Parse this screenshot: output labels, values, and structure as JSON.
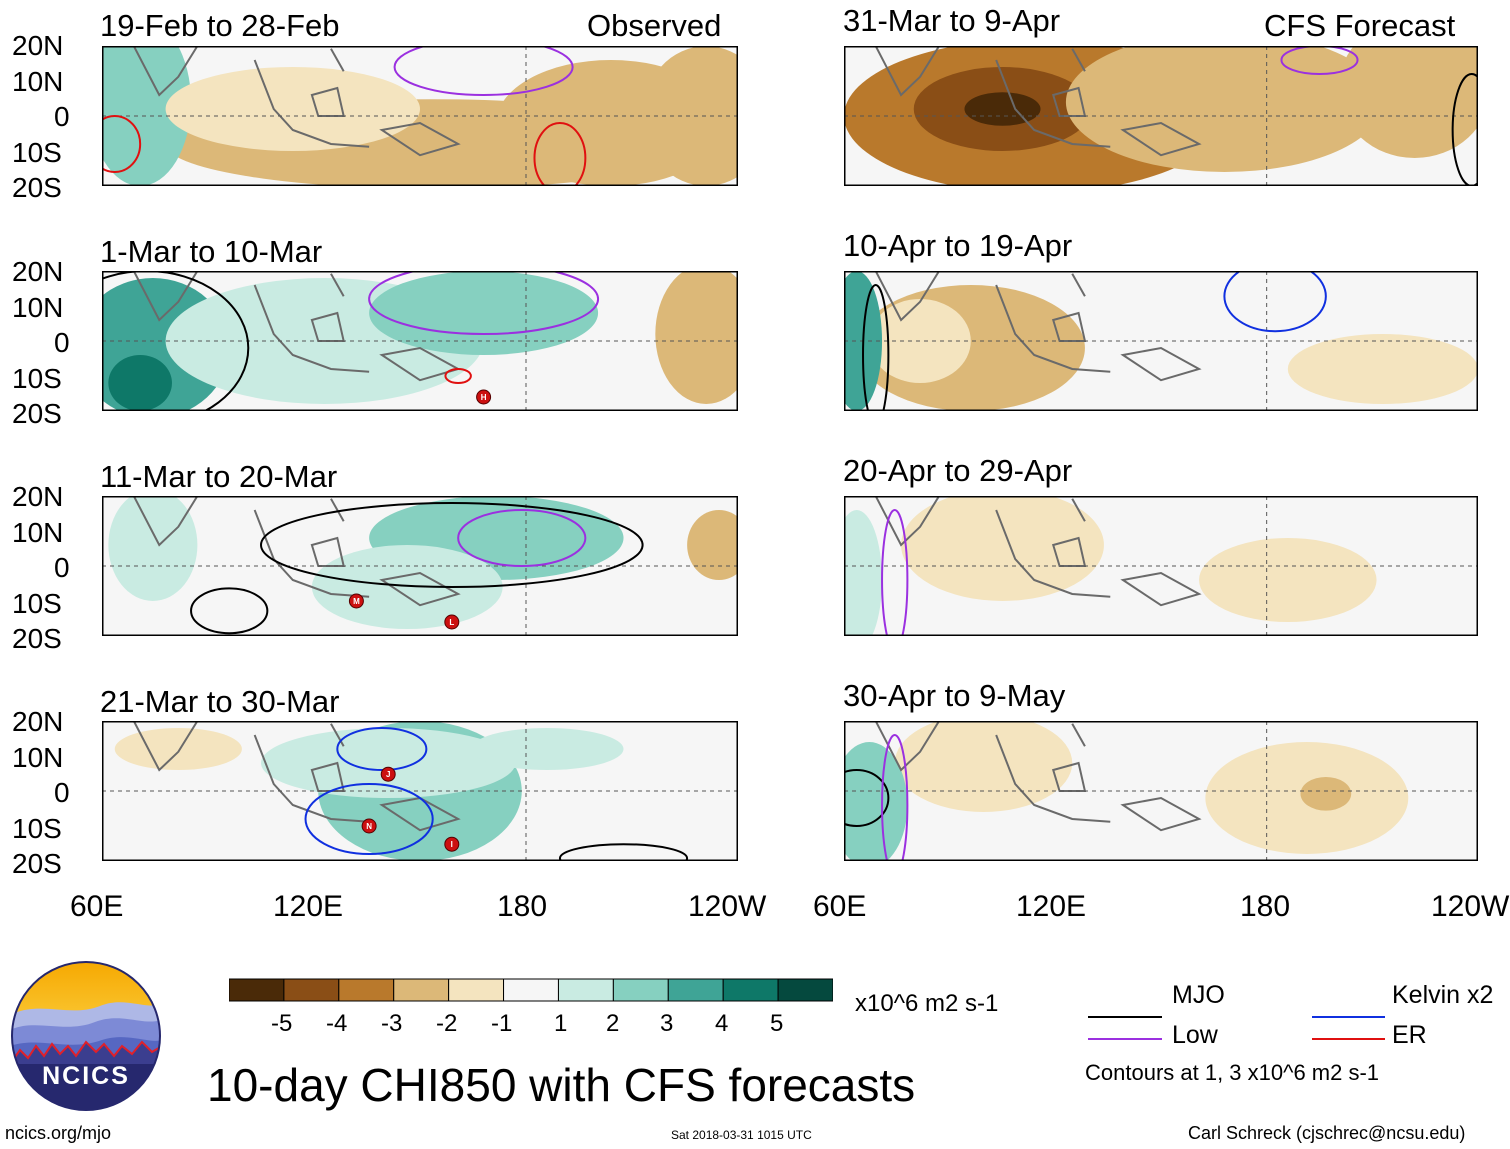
{
  "chart_data": {
    "type": "heatmap",
    "title": "10-day CHI850 with CFS forecasts",
    "variable": "CHI850",
    "units": "x10^6 m2 s-1",
    "latitude_labels": [
      "20N",
      "10N",
      "0",
      "10S",
      "20S"
    ],
    "longitude_labels": [
      "60E",
      "120E",
      "180",
      "120W"
    ],
    "observed_label": "Observed",
    "forecast_label": "CFS Forecast",
    "colorbar": {
      "ticks": [
        "-5",
        "-4",
        "-3",
        "-2",
        "-1",
        "1",
        "2",
        "3",
        "4",
        "5"
      ],
      "colors": [
        "#4a2a08",
        "#8a4e16",
        "#b9792c",
        "#dcb878",
        "#f4e4bf",
        "#f6f6f6",
        "#c9ebe2",
        "#86d0c0",
        "#3fa496",
        "#0e7868",
        "#05493e"
      ],
      "units_label": "x10^6 m2 s-1"
    },
    "panels": [
      {
        "period": "19-Feb to 28-Feb",
        "group": "Observed",
        "cyclones": []
      },
      {
        "period": "1-Mar to 10-Mar",
        "group": "Observed",
        "cyclones": [
          "H"
        ]
      },
      {
        "period": "11-Mar to 20-Mar",
        "group": "Observed",
        "cyclones": [
          "M",
          "L"
        ]
      },
      {
        "period": "21-Mar to 30-Mar",
        "group": "Observed",
        "cyclones": [
          "J",
          "N",
          "I"
        ]
      },
      {
        "period": "31-Mar to 9-Apr",
        "group": "CFS Forecast",
        "cyclones": []
      },
      {
        "period": "10-Apr to 19-Apr",
        "group": "CFS Forecast",
        "cyclones": []
      },
      {
        "period": "20-Apr to 29-Apr",
        "group": "CFS Forecast",
        "cyclones": []
      },
      {
        "period": "30-Apr to 9-May",
        "group": "CFS Forecast",
        "cyclones": []
      }
    ],
    "legend": {
      "items": [
        {
          "label": "MJO",
          "color": "#000000"
        },
        {
          "label": "Kelvin x2",
          "color": "#1030e0"
        },
        {
          "label": "Low",
          "color": "#9b30e0"
        },
        {
          "label": "ER",
          "color": "#e01010"
        }
      ],
      "note": "Contours at 1, 3 x10^6 m2 s-1"
    }
  },
  "logo": {
    "text": "NCICS"
  },
  "footer": {
    "url": "ncics.org/mjo",
    "timestamp": "Sat 2018-03-31 1015 UTC",
    "credit": "Carl Schreck (cjschrec@ncsu.edu)"
  }
}
